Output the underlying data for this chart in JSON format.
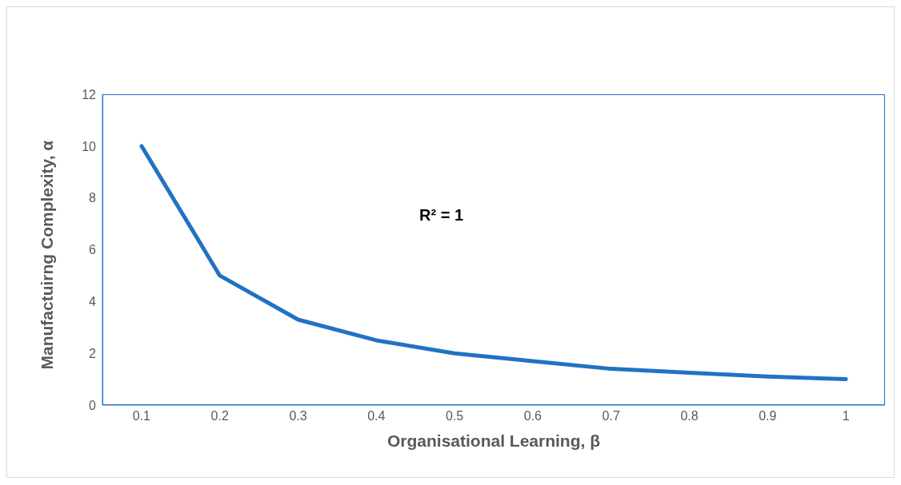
{
  "chart_data": {
    "type": "line",
    "xlabel": "Organisational Learning, β",
    "ylabel": "Manufactuirng Complexity, α",
    "categories": [
      "0.1",
      "0.2",
      "0.3",
      "0.4",
      "0.5",
      "0.6",
      "0.7",
      "0.8",
      "0.9",
      "1"
    ],
    "series": [
      {
        "color": "#2272c3",
        "values": [
          10,
          5,
          3.3,
          2.5,
          2,
          1.7,
          1.4,
          1.25,
          1.1,
          1
        ]
      }
    ],
    "ylim": [
      0,
      12
    ],
    "yticks": [
      0,
      2,
      4,
      6,
      8,
      10,
      12
    ],
    "marker": "none",
    "line_style": "solid",
    "annotations": [
      "R² = 1"
    ]
  }
}
